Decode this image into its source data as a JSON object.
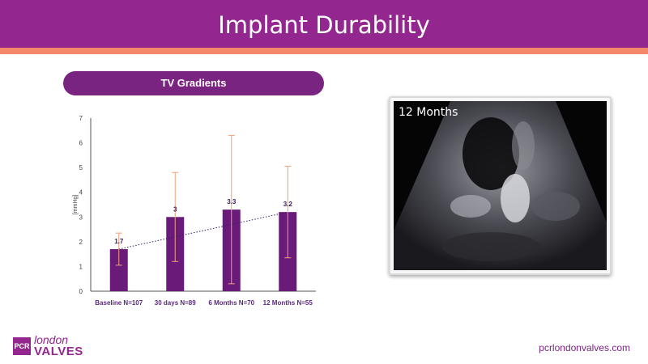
{
  "slide": {
    "title": "Implant Durability",
    "chart_heading": "TV Gradients",
    "image_caption": "12 Months",
    "website": "pcrlondonvalves.com",
    "logo": {
      "mark": "PCR",
      "top": "london",
      "bottom": "VALVES"
    },
    "colors": {
      "brand": "#93278f",
      "accent": "#f4886b",
      "bar": "#6a1b7a",
      "error_bar": "#f0a07a"
    }
  },
  "chart_data": {
    "type": "bar",
    "categories": [
      "Baseline N=107",
      "30 days N=89",
      "6 Months N=70",
      "12 Months N=55"
    ],
    "values": [
      1.7,
      3,
      3.3,
      3.2
    ],
    "labels": [
      "1.7",
      "3",
      "3.3",
      "3.2"
    ],
    "error_low": [
      1.05,
      1.2,
      0.3,
      1.35
    ],
    "error_high": [
      2.35,
      4.8,
      6.3,
      5.05
    ],
    "ylabel": "[mmHg]",
    "ylim": [
      0,
      7
    ],
    "yticks": [
      0,
      1,
      2,
      3,
      4,
      5,
      6,
      7
    ],
    "trendline": "dotted",
    "grid": false
  }
}
